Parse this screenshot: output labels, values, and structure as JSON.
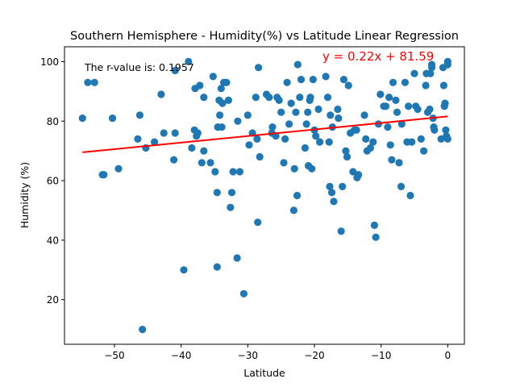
{
  "chart_data": {
    "type": "scatter",
    "title": "Southern Hemisphere - Humidity(%) vs Latitude Linear Regression",
    "xlabel": "Latitude",
    "ylabel": "Humidity (%)",
    "xlim": [
      -57.5,
      2.5
    ],
    "ylim": [
      5,
      105
    ],
    "xticks": [
      -50,
      -40,
      -30,
      -20,
      -10,
      0
    ],
    "yticks": [
      20,
      40,
      60,
      80,
      100
    ],
    "grid": false,
    "point_color": "#1f77b4",
    "regression": {
      "slope": 0.22,
      "intercept": 81.59,
      "x_range": [
        -54.8,
        0
      ],
      "color": "#ff0000",
      "equation_label": "y = 0.22x + 81.59"
    },
    "rvalue_label": "The r-value is: 0.1957",
    "points": [
      [
        -54.8,
        81
      ],
      [
        -54,
        93
      ],
      [
        -53,
        93
      ],
      [
        -51.8,
        62
      ],
      [
        -51.6,
        62
      ],
      [
        -50.3,
        81
      ],
      [
        -49.4,
        64
      ],
      [
        -46.5,
        74
      ],
      [
        -46.2,
        82
      ],
      [
        -45.8,
        10
      ],
      [
        -45.3,
        71
      ],
      [
        -44,
        73
      ],
      [
        -43,
        89
      ],
      [
        -42.6,
        76
      ],
      [
        -41.1,
        67
      ],
      [
        -40.9,
        97
      ],
      [
        -40.9,
        76
      ],
      [
        -39.6,
        30
      ],
      [
        -38.9,
        100
      ],
      [
        -38.4,
        71
      ],
      [
        -38,
        77
      ],
      [
        -37.9,
        91
      ],
      [
        -37.5,
        76
      ],
      [
        -37.7,
        75
      ],
      [
        -37.2,
        92
      ],
      [
        -36.9,
        66
      ],
      [
        -36.6,
        88
      ],
      [
        -36.6,
        70
      ],
      [
        -35.6,
        66
      ],
      [
        -35.2,
        95
      ],
      [
        -34.9,
        63
      ],
      [
        -34.6,
        56
      ],
      [
        -34.6,
        31
      ],
      [
        -34.5,
        78
      ],
      [
        -34.3,
        87
      ],
      [
        -34.2,
        82
      ],
      [
        -34,
        91
      ],
      [
        -33.9,
        78
      ],
      [
        -33.8,
        86
      ],
      [
        -33.6,
        93
      ],
      [
        -33.2,
        93
      ],
      [
        -32.9,
        87
      ],
      [
        -32.6,
        51
      ],
      [
        -32.4,
        56
      ],
      [
        -32.2,
        63
      ],
      [
        -31.6,
        34
      ],
      [
        -31.5,
        80
      ],
      [
        -31.2,
        63
      ],
      [
        -30.6,
        22
      ],
      [
        -30,
        82
      ],
      [
        -29.8,
        72
      ],
      [
        -29.3,
        76
      ],
      [
        -28.8,
        88
      ],
      [
        -28.6,
        74
      ],
      [
        -28.5,
        46
      ],
      [
        -28.4,
        98
      ],
      [
        -28.2,
        68
      ],
      [
        -27.2,
        89
      ],
      [
        -26.8,
        88
      ],
      [
        -26.4,
        76
      ],
      [
        -26.3,
        78
      ],
      [
        -25.8,
        75
      ],
      [
        -25.6,
        88
      ],
      [
        -25.3,
        87
      ],
      [
        -25,
        83
      ],
      [
        -24.6,
        66
      ],
      [
        -24.4,
        74
      ],
      [
        -24.1,
        93
      ],
      [
        -23.8,
        79
      ],
      [
        -23.5,
        86
      ],
      [
        -23.1,
        50
      ],
      [
        -23,
        64
      ],
      [
        -22.8,
        83
      ],
      [
        -22.6,
        55
      ],
      [
        -22.5,
        99
      ],
      [
        -22.2,
        88
      ],
      [
        -22,
        94
      ],
      [
        -21.4,
        71
      ],
      [
        -21.2,
        79
      ],
      [
        -21,
        83
      ],
      [
        -20.9,
        65
      ],
      [
        -20.7,
        87
      ],
      [
        -20.6,
        88
      ],
      [
        -20.4,
        64
      ],
      [
        -20.2,
        94
      ],
      [
        -20,
        77
      ],
      [
        -19.8,
        75
      ],
      [
        -19.4,
        84
      ],
      [
        -19.2,
        73
      ],
      [
        -18.3,
        95
      ],
      [
        -18,
        88
      ],
      [
        -17.8,
        73
      ],
      [
        -17.7,
        58
      ],
      [
        -17.6,
        82
      ],
      [
        -17.4,
        56
      ],
      [
        -17.1,
        53
      ],
      [
        -17.3,
        78
      ],
      [
        -16.5,
        84
      ],
      [
        -16.4,
        81
      ],
      [
        -16,
        43
      ],
      [
        -15.8,
        58
      ],
      [
        -15.6,
        94
      ],
      [
        -15.3,
        70
      ],
      [
        -15.1,
        68
      ],
      [
        -14.9,
        92
      ],
      [
        -14.6,
        76
      ],
      [
        -14.2,
        63
      ],
      [
        -14,
        77
      ],
      [
        -13.6,
        61
      ],
      [
        -13.4,
        62
      ],
      [
        -13.7,
        77
      ],
      [
        -12.5,
        82
      ],
      [
        -12.3,
        74
      ],
      [
        -12.1,
        70
      ],
      [
        -11.6,
        71
      ],
      [
        -11.2,
        73
      ],
      [
        -11,
        45
      ],
      [
        -10.8,
        41
      ],
      [
        -10.4,
        79
      ],
      [
        -10.1,
        89
      ],
      [
        -9.6,
        85
      ],
      [
        -9.3,
        85
      ],
      [
        -9,
        78
      ],
      [
        -8.8,
        88
      ],
      [
        -8.6,
        72
      ],
      [
        -8.4,
        67
      ],
      [
        -8.2,
        93
      ],
      [
        -7.8,
        87
      ],
      [
        -7.6,
        83
      ],
      [
        -7.3,
        66
      ],
      [
        -7,
        58
      ],
      [
        -6.9,
        79
      ],
      [
        -6.4,
        93
      ],
      [
        -6.1,
        73
      ],
      [
        -5.9,
        85
      ],
      [
        -5.6,
        55
      ],
      [
        -5.4,
        73
      ],
      [
        -5,
        96
      ],
      [
        -4.8,
        85
      ],
      [
        -4.5,
        84
      ],
      [
        -4,
        74
      ],
      [
        -3.6,
        70
      ],
      [
        -3.3,
        92
      ],
      [
        -3.2,
        96
      ],
      [
        -3,
        83
      ],
      [
        -2.7,
        84
      ],
      [
        -2.6,
        96
      ],
      [
        -2.4,
        99
      ],
      [
        -2.4,
        98
      ],
      [
        -2.2,
        81
      ],
      [
        -2.1,
        78
      ],
      [
        -2,
        77
      ],
      [
        -1,
        74
      ],
      [
        -0.7,
        98
      ],
      [
        -0.6,
        92
      ],
      [
        -0.5,
        85
      ],
      [
        -0.4,
        86
      ],
      [
        -0.3,
        77
      ],
      [
        -0.2,
        75
      ],
      [
        0,
        74
      ],
      [
        0,
        99
      ],
      [
        0,
        100
      ]
    ]
  }
}
